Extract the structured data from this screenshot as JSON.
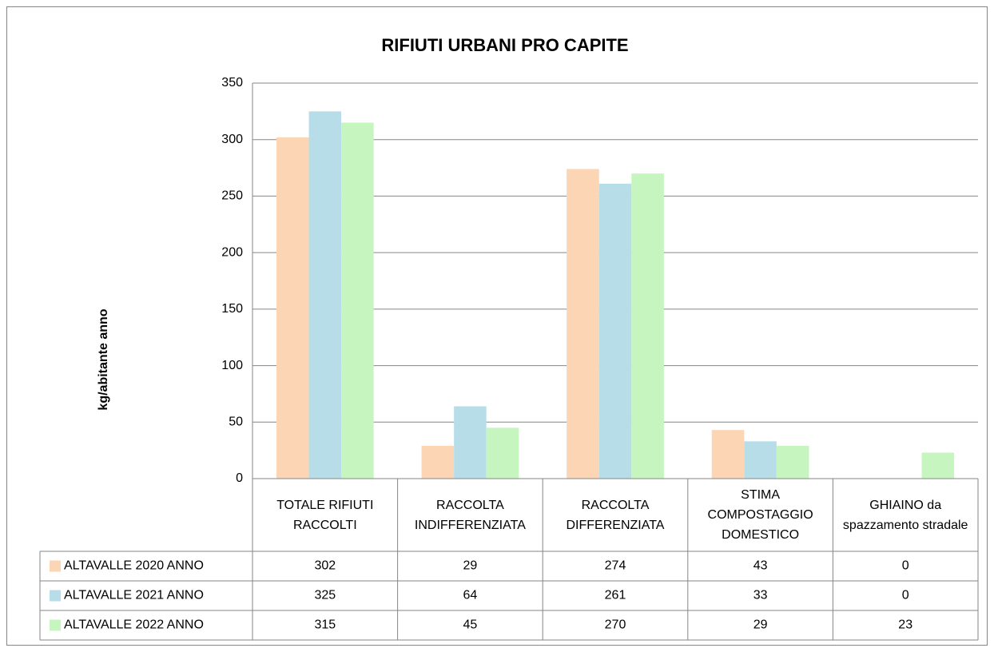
{
  "chart_data": {
    "type": "bar",
    "title": "RIFIUTI URBANI PRO CAPITE",
    "y_label": "kg/abitante anno",
    "categories": [
      "TOTALE RIFIUTI RACCOLTI",
      "RACCOLTA INDIFFERENZIATA",
      "RACCOLTA DIFFERENZIATA",
      "STIMA COMPOSTAGGIO DOMESTICO",
      "GHIAINO da spazzamento stradale"
    ],
    "series": [
      {
        "name": "ALTAVALLE 2020 ANNO",
        "color": "#fcd5b5",
        "values": [
          302,
          29,
          274,
          43,
          0
        ]
      },
      {
        "name": "ALTAVALLE 2021 ANNO",
        "color": "#b7dee8",
        "values": [
          325,
          64,
          261,
          33,
          0
        ]
      },
      {
        "name": "ALTAVALLE 2022 ANNO",
        "color": "#c6f5bf",
        "values": [
          315,
          45,
          270,
          29,
          23
        ]
      }
    ],
    "ylim": [
      0,
      350
    ],
    "yticks": [
      0,
      50,
      100,
      150,
      200,
      250,
      300,
      350
    ],
    "grid": true,
    "data_table": true
  }
}
